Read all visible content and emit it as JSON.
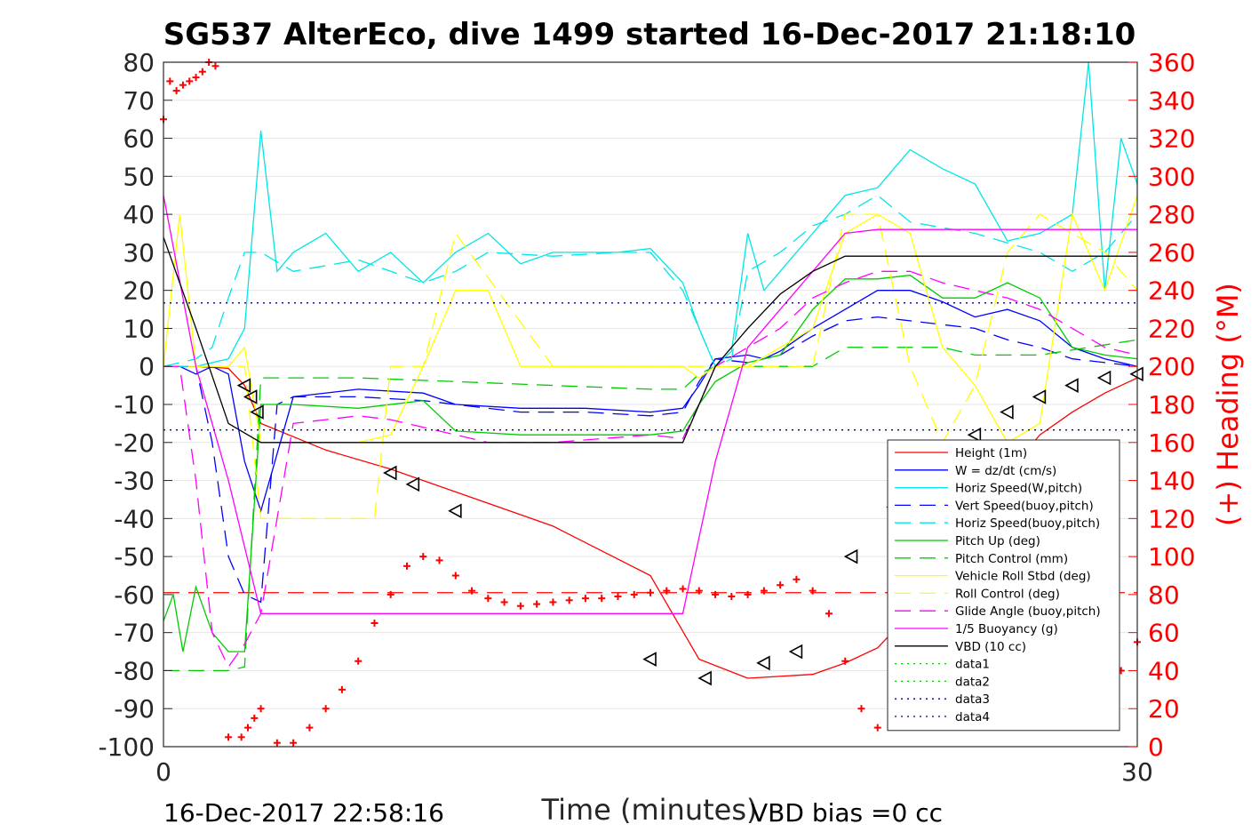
{
  "chart_data": {
    "type": "line",
    "title": "SG537 AlterEco, dive 1499 started 16-Dec-2017 21:18:10",
    "xlabel": "Time (minutes)",
    "ylabel": "",
    "y2label": "(+) Heading (°M)",
    "xlim": [
      0,
      30
    ],
    "ylim": [
      -100,
      80
    ],
    "y2lim": [
      0,
      360
    ],
    "x_ticks": [
      "0",
      "30"
    ],
    "y_ticks": [
      "80",
      "70",
      "60",
      "50",
      "40",
      "30",
      "20",
      "10",
      "0",
      "-10",
      "-20",
      "-30",
      "-40",
      "-50",
      "-60",
      "-70",
      "-80",
      "-90",
      "-100"
    ],
    "y2_ticks": [
      "360",
      "340",
      "320",
      "300",
      "280",
      "260",
      "240",
      "220",
      "200",
      "180",
      "160",
      "140",
      "120",
      "100",
      "80",
      "60",
      "40",
      "20",
      "0"
    ],
    "grid": "horizontal",
    "legend_position": "lower-right",
    "footer_left": "16-Dec-2017 22:58:16",
    "footer_right": "VBD bias =0 cc",
    "series": [
      {
        "name": "Height (1m)",
        "color": "#ff0000",
        "style": "solid",
        "x": [
          0,
          1,
          2,
          2.5,
          3,
          5,
          7,
          9,
          12,
          15,
          16.5,
          18,
          20,
          21,
          22,
          23,
          24,
          25,
          26,
          27,
          28,
          29,
          30
        ],
        "y": [
          0,
          0,
          -0.5,
          -5,
          -15,
          -22,
          -27,
          -33,
          -42,
          -55,
          -77,
          -82,
          -81,
          -78,
          -74,
          -65,
          -50,
          -38,
          -28,
          -18,
          -12,
          -7,
          -3
        ]
      },
      {
        "name": "W = dz/dt (cm/s)",
        "color": "#0000ff",
        "style": "solid",
        "x": [
          0,
          0.5,
          1,
          1.5,
          2,
          2.5,
          3,
          4,
          6,
          8,
          9,
          11,
          13,
          15,
          16,
          16.5,
          17,
          18,
          18.5,
          19,
          20,
          21,
          22,
          23,
          24,
          25,
          26,
          27,
          28,
          29,
          30
        ],
        "y": [
          0,
          0,
          -2,
          0,
          -2,
          -25,
          -38,
          -8,
          -6,
          -7,
          -10,
          -11,
          -11,
          -12,
          -11,
          -5,
          2,
          3,
          2,
          4,
          10,
          15,
          20,
          20,
          17,
          13,
          15,
          12,
          5,
          2,
          0
        ]
      },
      {
        "name": "Horiz Speed(W,pitch)",
        "color": "#00e6e6",
        "style": "solid",
        "x": [
          0,
          1,
          2,
          2.5,
          3,
          3.5,
          4,
          5,
          6,
          7,
          8,
          9,
          10,
          11,
          12,
          13,
          14,
          15,
          16,
          16.5,
          17,
          17.5,
          18,
          18.5,
          19,
          20,
          21,
          22,
          23,
          24,
          25,
          26,
          27,
          28,
          28.5,
          29,
          29.5,
          30
        ],
        "y": [
          0,
          0,
          2,
          10,
          62,
          25,
          30,
          35,
          25,
          30,
          22,
          30,
          35,
          27,
          30,
          30,
          30,
          31,
          22,
          10,
          0,
          4,
          35,
          20,
          25,
          35,
          45,
          47,
          57,
          52,
          48,
          33,
          35,
          40,
          80,
          20,
          60,
          48
        ]
      },
      {
        "name": "Vert Speed(buoy,pitch)",
        "color": "#0000ff",
        "style": "dashed",
        "x": [
          0,
          1,
          1.5,
          2,
          2.5,
          3,
          3.5,
          4,
          6,
          8,
          9,
          11,
          13,
          15,
          16,
          16.5,
          17,
          18,
          19,
          20,
          21,
          22,
          23,
          24,
          25,
          26,
          27,
          28,
          29,
          30
        ],
        "y": [
          0,
          0,
          -20,
          -50,
          -60,
          -62,
          -10,
          -8,
          -8,
          -9,
          -10,
          -12,
          -12,
          -13,
          -12,
          -4,
          2,
          1,
          3,
          8,
          12,
          13,
          12,
          11,
          10,
          7,
          5,
          2,
          1,
          0
        ]
      },
      {
        "name": "Horiz Speed(buoy,pitch)",
        "color": "#00e6e6",
        "style": "dashed",
        "x": [
          0,
          1,
          1.5,
          2,
          2.5,
          3,
          4,
          6,
          8,
          9,
          10,
          12,
          14,
          15,
          16,
          17,
          17.5,
          18,
          19,
          20,
          21,
          22,
          23,
          25,
          27,
          28,
          29,
          30
        ],
        "y": [
          0,
          2,
          5,
          18,
          30,
          30,
          25,
          28,
          22,
          25,
          30,
          29,
          30,
          30,
          20,
          0,
          2,
          25,
          30,
          37,
          40,
          45,
          38,
          35,
          30,
          25,
          30,
          40
        ]
      },
      {
        "name": "Pitch Up (deg)",
        "color": "#00cc00",
        "style": "solid",
        "x": [
          0,
          0.3,
          0.6,
          1,
          1.5,
          2,
          2.5,
          3,
          4,
          6,
          8,
          9,
          11,
          13,
          15,
          16,
          16.5,
          17,
          18,
          19,
          20,
          21,
          22,
          23,
          24,
          25,
          26,
          27,
          28,
          29,
          30
        ],
        "y": [
          -67,
          -60,
          -75,
          -58,
          -70,
          -75,
          -75,
          -10,
          -10,
          -11,
          -9,
          -17,
          -18,
          -18,
          -18,
          -17,
          -10,
          -4,
          1,
          3,
          15,
          23,
          23,
          24,
          18,
          18,
          22,
          18,
          5,
          3,
          2
        ]
      },
      {
        "name": "Pitch Control (mm)",
        "color": "#00cc00",
        "style": "dashed",
        "x": [
          0,
          1,
          2,
          2.5,
          3,
          6,
          9,
          12,
          15,
          16,
          16.5,
          17,
          20,
          21,
          24,
          25,
          27,
          30
        ],
        "y": [
          -80,
          -80,
          -80,
          -79,
          -3,
          -3,
          -4,
          -5,
          -6,
          -6,
          -2,
          0,
          0,
          5,
          5,
          3,
          3,
          7
        ]
      },
      {
        "name": "Vehicle Roll Stbd (deg)",
        "color": "#ffff00",
        "style": "solid",
        "x": [
          0,
          0.5,
          1,
          2,
          2.5,
          3,
          4,
          6,
          7,
          8,
          9,
          10,
          11,
          12,
          15,
          16,
          16.5,
          17,
          18,
          19,
          20,
          21,
          22,
          23,
          24,
          25,
          26,
          27,
          28,
          29,
          30
        ],
        "y": [
          0,
          40,
          0,
          0,
          5,
          -20,
          -20,
          -20,
          -18,
          0,
          20,
          20,
          0,
          0,
          0,
          0,
          -3,
          0,
          0,
          5,
          10,
          35,
          40,
          35,
          5,
          -5,
          -20,
          -15,
          40,
          20,
          45
        ]
      },
      {
        "name": "Roll Control (deg)",
        "color": "#ffff00",
        "style": "dashed",
        "x": [
          0,
          1,
          2,
          2.5,
          3,
          6,
          6.5,
          7,
          8,
          9,
          12,
          15,
          16,
          17,
          18,
          19,
          20,
          21,
          22,
          23,
          24,
          25,
          26,
          27,
          28,
          29,
          30
        ],
        "y": [
          0,
          0,
          0,
          0,
          -40,
          -40,
          -40,
          0,
          0,
          35,
          0,
          0,
          0,
          0,
          0,
          0,
          0,
          40,
          40,
          0,
          -20,
          -5,
          30,
          40,
          35,
          30,
          20
        ]
      },
      {
        "name": "Glide Angle (buoy,pitch)",
        "color": "#ff00ff",
        "style": "dashed",
        "x": [
          0,
          0.5,
          1,
          1.5,
          2,
          2.5,
          3,
          4,
          6,
          7,
          9,
          10,
          12,
          15,
          16,
          16.5,
          17,
          18,
          19,
          20,
          21,
          22,
          23,
          24,
          25,
          26,
          27,
          28,
          29,
          30
        ],
        "y": [
          0,
          0,
          -30,
          -70,
          -79,
          -73,
          -65,
          -15,
          -13,
          -14,
          -18,
          -20,
          -20,
          -18,
          -19,
          -10,
          0,
          5,
          10,
          18,
          22,
          25,
          25,
          22,
          20,
          18,
          15,
          10,
          5,
          3
        ]
      },
      {
        "name": "1/5 Buoyancy (g)",
        "color": "#ff00ff",
        "style": "solid",
        "x": [
          0,
          1,
          2,
          3,
          15,
          16,
          17,
          18,
          19,
          20,
          21,
          22,
          26,
          30
        ],
        "y": [
          45,
          0,
          -30,
          -65,
          -65,
          -65,
          -25,
          5,
          15,
          25,
          35,
          36,
          36,
          36
        ]
      },
      {
        "name": "VBD (10 cc)",
        "color": "#000000",
        "style": "solid",
        "x": [
          0,
          1,
          2,
          3,
          15,
          16,
          17,
          18,
          19,
          20,
          21,
          26,
          30
        ],
        "y": [
          34,
          10,
          -15,
          -20,
          -20,
          -20,
          0,
          10,
          19,
          25,
          29,
          29,
          29
        ]
      },
      {
        "name": "data1",
        "color": "#00cc00",
        "style": "dotted",
        "x": [],
        "y": []
      },
      {
        "name": "data2",
        "color": "#00cc00",
        "style": "dotted",
        "x": [],
        "y": []
      },
      {
        "name": "data3",
        "color": "#000080",
        "style": "dotted",
        "x": [
          0,
          30
        ],
        "y": [
          16.7,
          16.7
        ]
      },
      {
        "name": "data4",
        "color": "#000080",
        "style": "dotted",
        "x": [
          0,
          30
        ],
        "y": [
          -16.7,
          -16.7
        ]
      }
    ],
    "reference_line": {
      "color": "#ff0000",
      "style": "dashed",
      "y": -59.5
    },
    "heading_points": {
      "color": "#ff0000",
      "marker": "+",
      "x": [
        0,
        0.2,
        0.4,
        0.6,
        0.8,
        1,
        1.2,
        1.4,
        1.6,
        2,
        2.4,
        2.6,
        2.8,
        3,
        3.5,
        4,
        4.5,
        5,
        5.5,
        6,
        6.5,
        7,
        7.5,
        8,
        8.5,
        9,
        9.5,
        10,
        10.5,
        11,
        11.5,
        12,
        12.5,
        13,
        13.5,
        14,
        14.5,
        15,
        15.5,
        16,
        16.5,
        17,
        17.5,
        18,
        18.5,
        19,
        19.5,
        20,
        20.5,
        21,
        21.5,
        22,
        22.5,
        23,
        23.5,
        24,
        24.5,
        25,
        25.5,
        26,
        26.5,
        27,
        27.5,
        28,
        28.5,
        29,
        29.5,
        30
      ],
      "y": [
        330,
        350,
        345,
        348,
        350,
        352,
        355,
        360,
        358,
        5,
        5,
        10,
        15,
        20,
        2,
        2,
        10,
        20,
        30,
        45,
        65,
        80,
        95,
        100,
        98,
        90,
        82,
        78,
        76,
        74,
        75,
        76,
        77,
        78,
        78,
        79,
        80,
        81,
        82,
        83,
        82,
        80,
        79,
        80,
        82,
        85,
        88,
        82,
        70,
        45,
        20,
        10,
        12,
        20,
        40,
        60,
        75,
        85,
        95,
        100,
        100,
        90,
        80,
        70,
        60,
        45,
        40,
        55
      ]
    },
    "markers": {
      "style": "triangle",
      "x": [
        2.5,
        2.7,
        2.9,
        7,
        7.7,
        9,
        15,
        16.7,
        18.5,
        19.5,
        21.2,
        22.5,
        24,
        25,
        26,
        27,
        28,
        29,
        30
      ],
      "y": [
        -5,
        -8,
        -12,
        -28,
        -31,
        -38,
        -77,
        -82,
        -78,
        -75,
        -50,
        -37,
        -28,
        -18,
        -12,
        -8,
        -5,
        -3,
        -2
      ]
    }
  }
}
